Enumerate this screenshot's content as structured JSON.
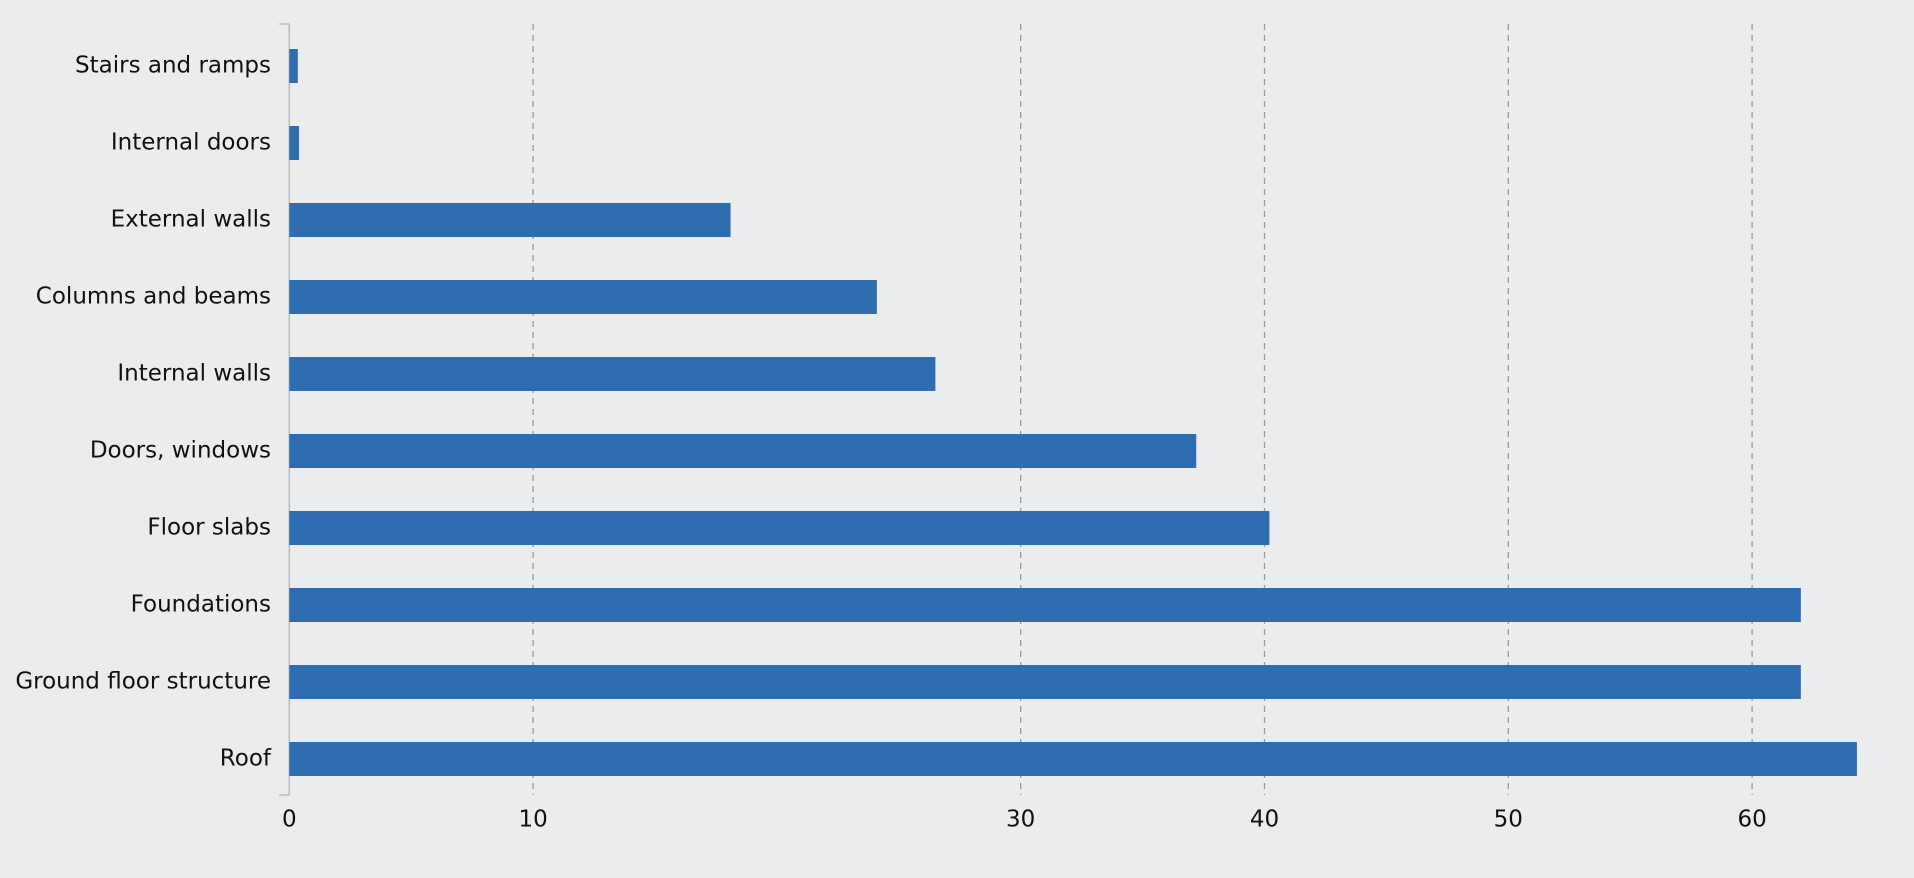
{
  "chart_data": {
    "type": "barh",
    "categories": [
      "Stairs and ramps",
      "Internal doors",
      "External walls",
      "Columns and beams",
      "Internal walls",
      "Doors, windows",
      "Floor slabs",
      "Foundations",
      "Ground floor structure",
      "Roof"
    ],
    "values": [
      0.35,
      0.4,
      18.1,
      24.1,
      26.5,
      37.2,
      40.2,
      62.0,
      62.0,
      64.3
    ],
    "color": "#2e6db0",
    "xlim": [
      0,
      66
    ],
    "xticks": [
      0,
      10,
      30,
      40,
      50,
      60
    ],
    "grid": true
  }
}
